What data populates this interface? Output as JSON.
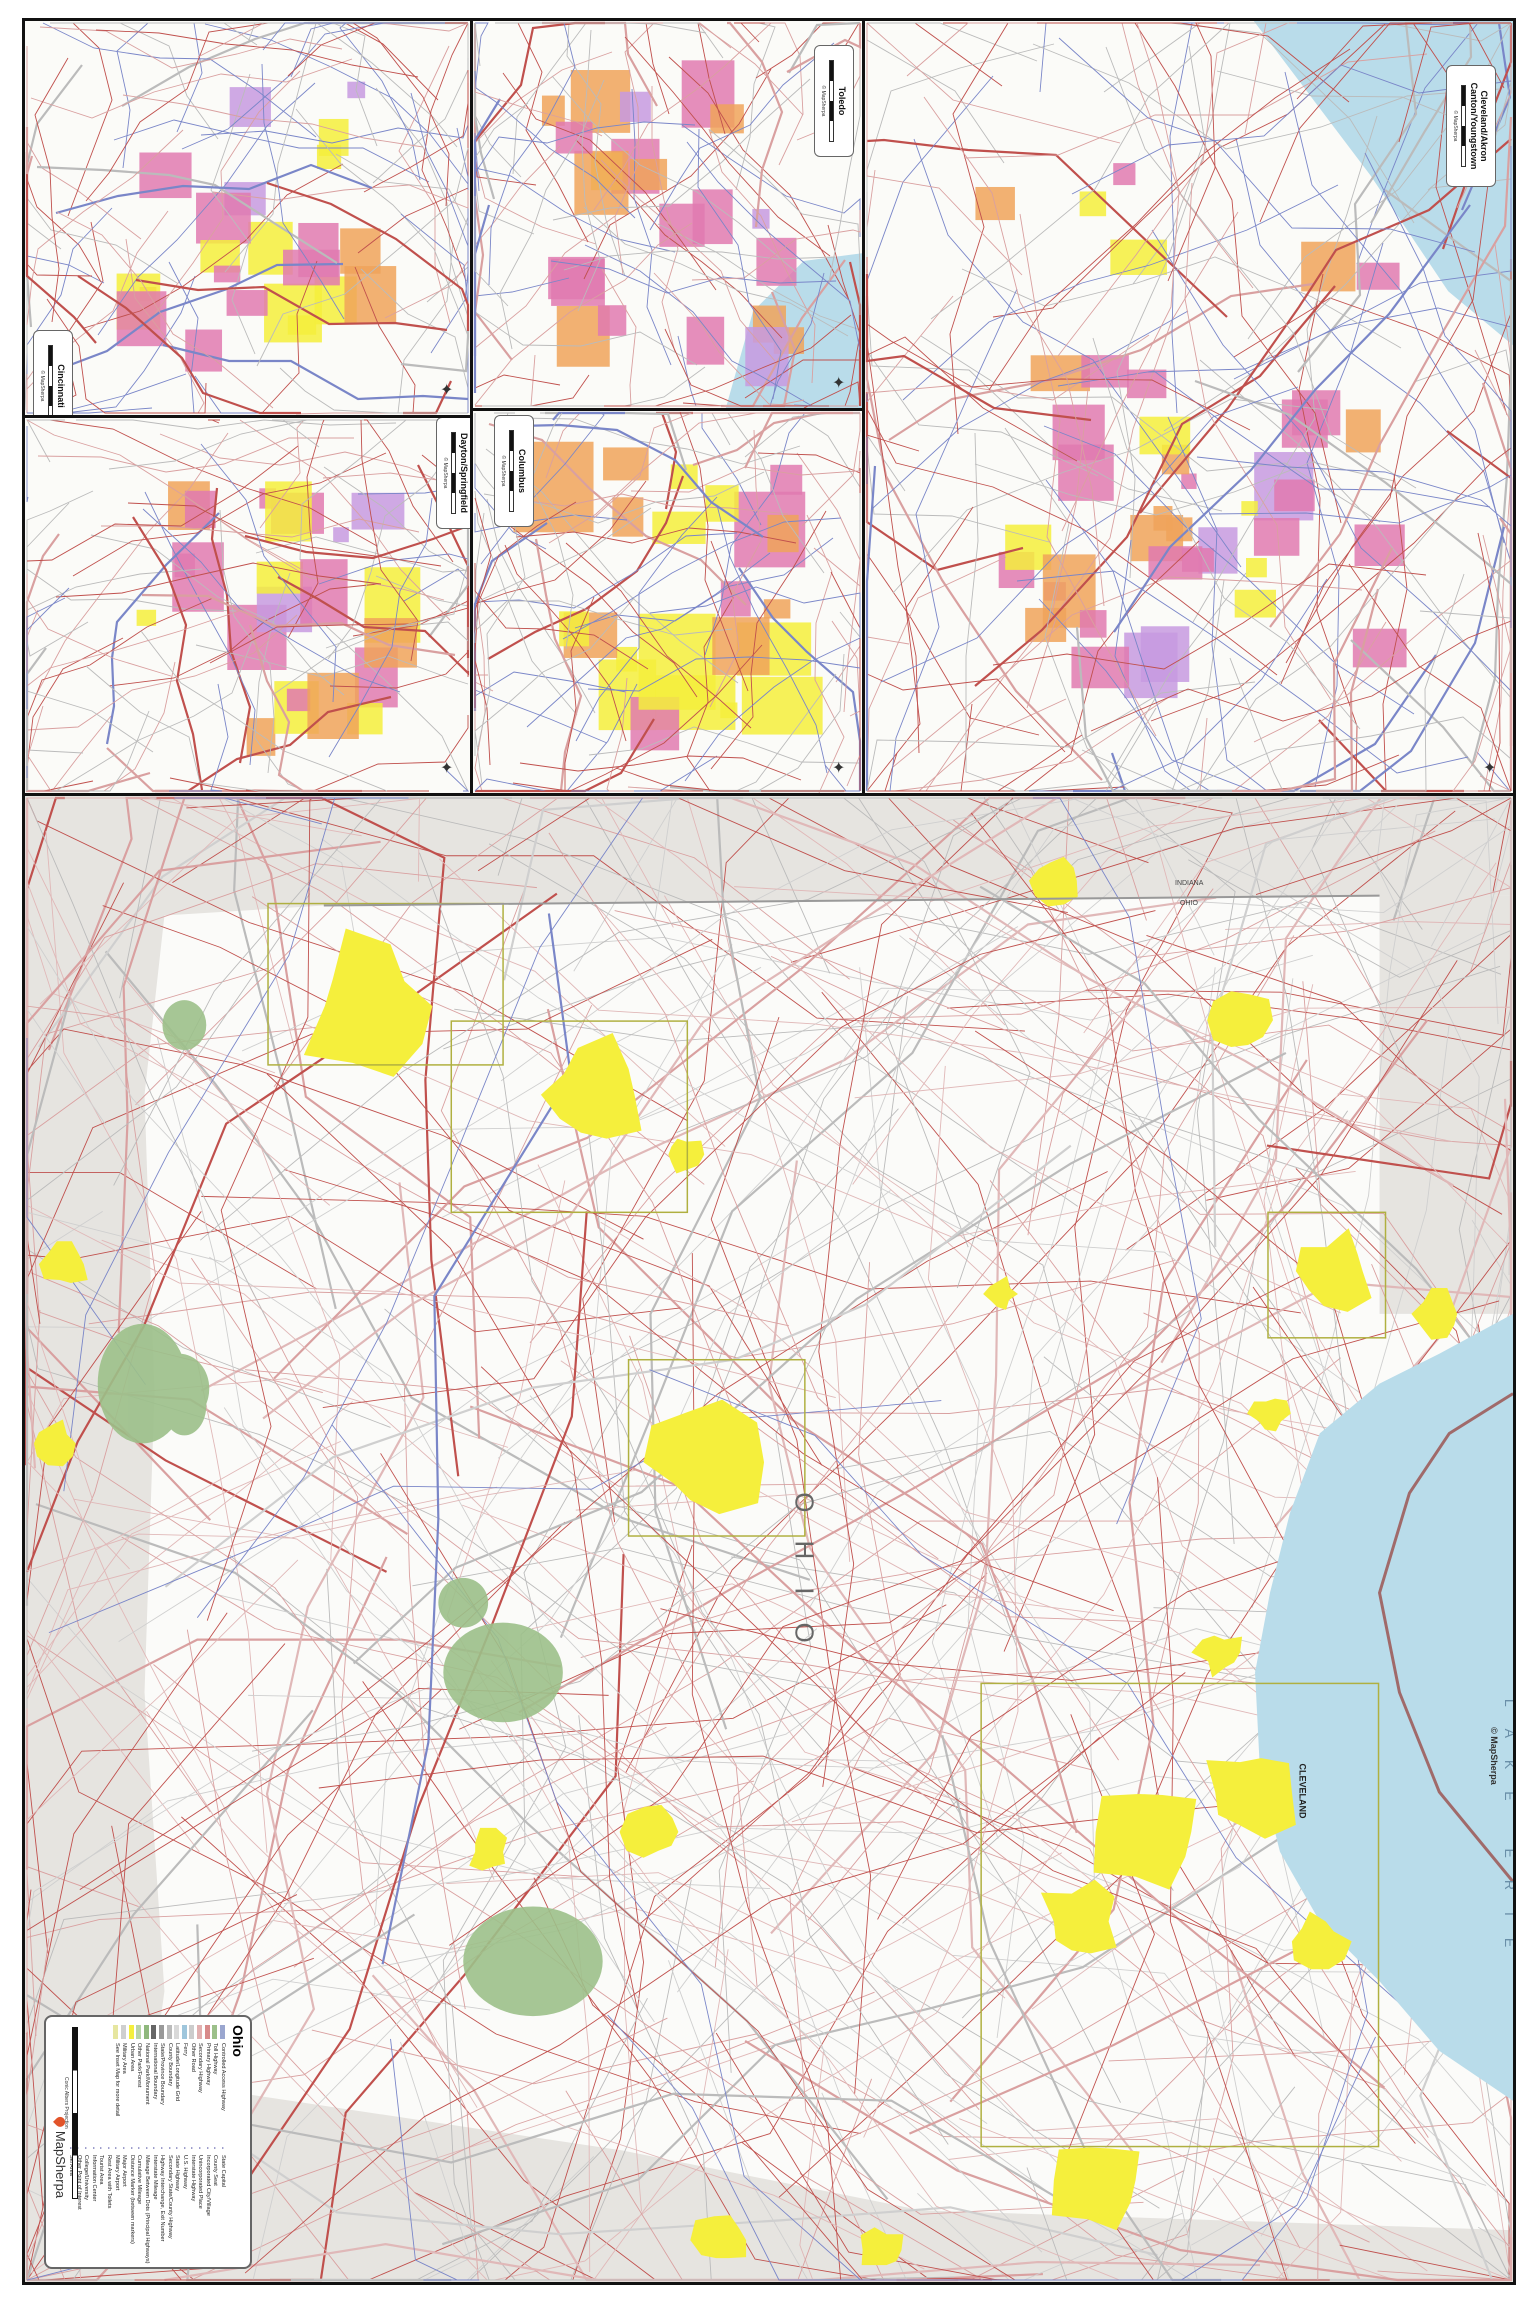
{
  "map": {
    "title": "Ohio",
    "state_label": "OHIO",
    "lake_label": "LAKE ERIE",
    "copyright": "© MapSherpa",
    "boundary_labels": {
      "north": "INDIANA",
      "south": "OHIO"
    },
    "city_labels": {
      "cleveland": "CLEVELAND"
    },
    "colors": {
      "water": "#b9dcea",
      "urban": "#f5ef3c",
      "park": "#9cc08a",
      "out_of_state": "#e6e4e0",
      "incorporated": "#e07ab0",
      "suburb": "#f0a35a",
      "interstate": "#7a86c8",
      "road": "#c0504d"
    }
  },
  "insets": [
    {
      "title": "Cincinnati",
      "copyright": "© MapSherpa"
    },
    {
      "title": "Toledo",
      "copyright": "© MapSherpa"
    },
    {
      "title": "Cleveland/Akron Canton/Youngstown",
      "copyright": "© MapSherpa"
    },
    {
      "title": "Dayton/Springfield",
      "copyright": "© MapSherpa"
    },
    {
      "title": "Columbus",
      "copyright": "© MapSherpa"
    }
  ],
  "legend": {
    "title": "Ohio",
    "line_items": [
      {
        "label": "Controlled Access Highway",
        "color": "#9aa6cf"
      },
      {
        "label": "Toll Highway",
        "color": "#9cc08a"
      },
      {
        "label": "Primary Highway",
        "color": "#d88a8a"
      },
      {
        "label": "Secondary Highway",
        "color": "#e2b0b0"
      },
      {
        "label": "Other Road",
        "color": "#cccccc"
      },
      {
        "label": "Ferry",
        "color": "#9fc6dc"
      },
      {
        "label": "Latitude/Longitude Grid",
        "color": "#d9d9d9"
      },
      {
        "label": "County Boundary",
        "color": "#bbbbbb"
      },
      {
        "label": "State/Province Boundary",
        "color": "#999999"
      },
      {
        "label": "International Boundary",
        "color": "#666666"
      },
      {
        "label": "National Park/Monument",
        "color": "#8fb87d"
      },
      {
        "label": "Other Park/Forest",
        "color": "#b8d4a8"
      },
      {
        "label": "Urban Area",
        "color": "#f5ef3c"
      },
      {
        "label": "Military Area",
        "color": "#cfcfcf"
      },
      {
        "label": "See Inset Map for more detail",
        "color": "#e6e6a0"
      }
    ],
    "symbol_items": [
      "State Capital",
      "County Seat",
      "Incorporated City/Village",
      "Unincorporated Place",
      "Interstate Highway",
      "U.S. Highway",
      "State Highway",
      "Secondary State/County Highway",
      "Highway Interchange, Exit Number",
      "Interstate Mileage",
      "Mileage Between Dots (Principal Highways)",
      "Cumulative Mileage",
      "Distance Marker (between markers)",
      "Major Airport",
      "Military Airport",
      "Rest Area with Toilets",
      "Tourist Area",
      "Information Center",
      "College/University",
      "Other Point of Interest",
      "Ski Area"
    ],
    "projection": "Conic Albers Projection",
    "brand": "MapSherpa"
  }
}
